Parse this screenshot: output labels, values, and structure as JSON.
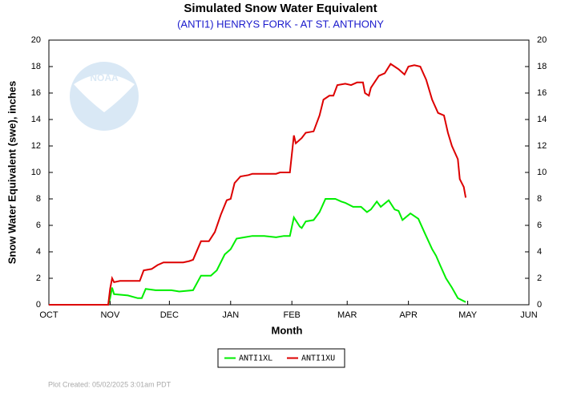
{
  "chart_data": {
    "type": "line",
    "title": "Simulated Snow Water Equivalent",
    "subtitle": "(ANTI1) HENRYS FORK - AT ST. ANTHONY",
    "xlabel": "Month",
    "ylabel": "Snow Water Equivalent (swe),  inches",
    "watermark": "NOAA",
    "footnote": "Plot Created: 05/02/2025 3:01am PDT",
    "xlim": [
      0,
      243
    ],
    "xticks": [
      {
        "value": 0,
        "label": "OCT"
      },
      {
        "value": 31,
        "label": "NOV"
      },
      {
        "value": 61,
        "label": "DEC"
      },
      {
        "value": 92,
        "label": "JAN"
      },
      {
        "value": 123,
        "label": "FEB"
      },
      {
        "value": 151,
        "label": "MAR"
      },
      {
        "value": 182,
        "label": "APR"
      },
      {
        "value": 212,
        "label": "MAY"
      },
      {
        "value": 243,
        "label": "JUN"
      }
    ],
    "ylim": [
      0,
      20
    ],
    "yticks": [
      0,
      2,
      4,
      6,
      8,
      10,
      12,
      14,
      16,
      18,
      20
    ],
    "series": [
      {
        "name": "ANTI1XL",
        "color": "#00ee00",
        "x": [
          0,
          30,
          31,
          32,
          33,
          40,
          45,
          47,
          49,
          54,
          62,
          66,
          73,
          77,
          82,
          85,
          89,
          92,
          95,
          99,
          103,
          109,
          115,
          119,
          122,
          124,
          127,
          128,
          130,
          134,
          137,
          140,
          145,
          148,
          150,
          154,
          158,
          161,
          163,
          166,
          168,
          172,
          175,
          177,
          179,
          183,
          187,
          190,
          194,
          196,
          198,
          201,
          204,
          207,
          211
        ],
        "values": [
          0,
          0,
          0.5,
          1.3,
          0.8,
          0.7,
          0.5,
          0.5,
          1.2,
          1.1,
          1.1,
          1.0,
          1.1,
          2.2,
          2.2,
          2.6,
          3.8,
          4.2,
          5.0,
          5.1,
          5.2,
          5.2,
          5.1,
          5.2,
          5.2,
          6.6,
          5.9,
          5.8,
          6.3,
          6.4,
          7.0,
          8.0,
          8.0,
          7.8,
          7.7,
          7.4,
          7.4,
          7.0,
          7.2,
          7.8,
          7.4,
          7.9,
          7.2,
          7.1,
          6.4,
          6.9,
          6.5,
          5.5,
          4.2,
          3.7,
          3.0,
          2.0,
          1.3,
          0.5,
          0.2
        ]
      },
      {
        "name": "ANTI1XU",
        "color": "#dd0000",
        "x": [
          0,
          30,
          31,
          32,
          33,
          36,
          46,
          48,
          52,
          55,
          58,
          68,
          71,
          73,
          77,
          81,
          84,
          87,
          90,
          92,
          94,
          97,
          101,
          103,
          115,
          117,
          122,
          124,
          125,
          128,
          130,
          134,
          137,
          139,
          142,
          144,
          146,
          150,
          153,
          156,
          159,
          160,
          162,
          163,
          167,
          170,
          173,
          175,
          177,
          180,
          182,
          185,
          188,
          191,
          194,
          197,
          200,
          202,
          204,
          207,
          208,
          210,
          211
        ],
        "values": [
          0,
          0,
          1.2,
          2.0,
          1.7,
          1.8,
          1.8,
          2.6,
          2.7,
          3.0,
          3.2,
          3.2,
          3.3,
          3.4,
          4.8,
          4.8,
          5.5,
          6.8,
          7.9,
          8.0,
          9.2,
          9.7,
          9.8,
          9.9,
          9.9,
          10.0,
          10.0,
          12.8,
          12.2,
          12.6,
          13.0,
          13.1,
          14.3,
          15.5,
          15.8,
          15.8,
          16.6,
          16.7,
          16.6,
          16.8,
          16.8,
          16.0,
          15.8,
          16.4,
          17.3,
          17.5,
          18.2,
          18.0,
          17.8,
          17.4,
          18.0,
          18.1,
          18.0,
          17.0,
          15.5,
          14.5,
          14.3,
          13.0,
          12.0,
          11.0,
          9.5,
          8.9,
          8.1
        ]
      }
    ]
  }
}
